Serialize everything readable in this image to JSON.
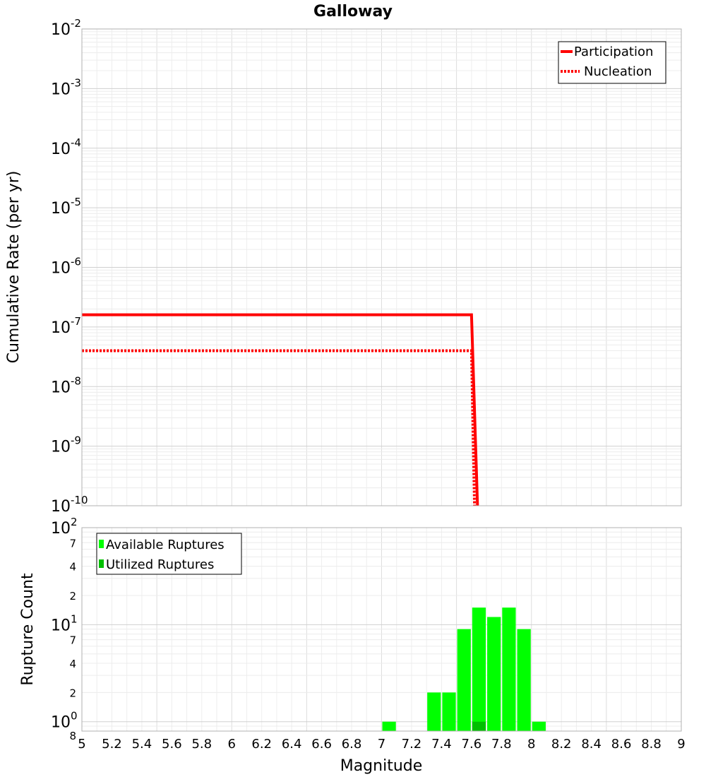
{
  "chart_data": [
    {
      "type": "line",
      "title": "Galloway",
      "ylabel": "Cumulative Rate (per yr)",
      "xlabel": "",
      "yscale": "log",
      "xlim": [
        5,
        9
      ],
      "ylim": [
        1e-10,
        0.01
      ],
      "y_ticks": [
        {
          "base": "10",
          "exp": "-2"
        },
        {
          "base": "10",
          "exp": "-3"
        },
        {
          "base": "10",
          "exp": "-4"
        },
        {
          "base": "10",
          "exp": "-5"
        },
        {
          "base": "10",
          "exp": "-6"
        },
        {
          "base": "10",
          "exp": "-7"
        },
        {
          "base": "10",
          "exp": "-8"
        },
        {
          "base": "10",
          "exp": "-9"
        },
        {
          "base": "10",
          "exp": "-10"
        }
      ],
      "grid": true,
      "legend_position": "top-right",
      "series": [
        {
          "name": "Participation",
          "color": "#ff0000",
          "style": "solid",
          "x": [
            5.0,
            7.6,
            7.64
          ],
          "y": [
            1.6e-07,
            1.6e-07,
            1e-10
          ]
        },
        {
          "name": "Nucleation",
          "color": "#ff0000",
          "style": "dotted",
          "x": [
            5.0,
            7.6,
            7.62
          ],
          "y": [
            4e-08,
            4e-08,
            1e-10
          ]
        }
      ]
    },
    {
      "type": "bar",
      "xlabel": "Magnitude",
      "ylabel": "Rupture Count",
      "yscale": "log",
      "xlim": [
        5,
        9
      ],
      "ylim": [
        0.8,
        100
      ],
      "x_ticks": [
        "5",
        "5.2",
        "5.4",
        "5.6",
        "5.8",
        "6",
        "6.2",
        "6.4",
        "6.6",
        "6.8",
        "7",
        "7.2",
        "7.4",
        "7.6",
        "7.8",
        "8",
        "8.2",
        "8.4",
        "8.6",
        "8.8",
        "9"
      ],
      "y_ticks": [
        {
          "value": 100,
          "base": "10",
          "exp": "2",
          "major": true
        },
        {
          "value": 70,
          "label": "7",
          "major": false
        },
        {
          "value": 40,
          "label": "4",
          "major": false
        },
        {
          "value": 20,
          "label": "2",
          "major": false
        },
        {
          "value": 10,
          "base": "10",
          "exp": "1",
          "major": true
        },
        {
          "value": 7,
          "label": "7",
          "major": false
        },
        {
          "value": 4,
          "label": "4",
          "major": false
        },
        {
          "value": 2,
          "label": "2",
          "major": false
        },
        {
          "value": 1,
          "base": "10",
          "exp": "0",
          "major": true
        },
        {
          "value": 0.8,
          "label": "8",
          "major": false
        }
      ],
      "grid": true,
      "legend_position": "top-left",
      "bin_width": 0.1,
      "series": [
        {
          "name": "Available Ruptures",
          "color": "#00ff00",
          "x": [
            7.05,
            7.35,
            7.45,
            7.55,
            7.65,
            7.75,
            7.85,
            7.95,
            8.05
          ],
          "values": [
            1,
            2,
            2,
            9,
            15,
            12,
            15,
            9,
            1
          ]
        },
        {
          "name": "Utilized Ruptures",
          "color": "#00c000",
          "x": [
            7.65
          ],
          "values": [
            1
          ]
        }
      ]
    }
  ]
}
